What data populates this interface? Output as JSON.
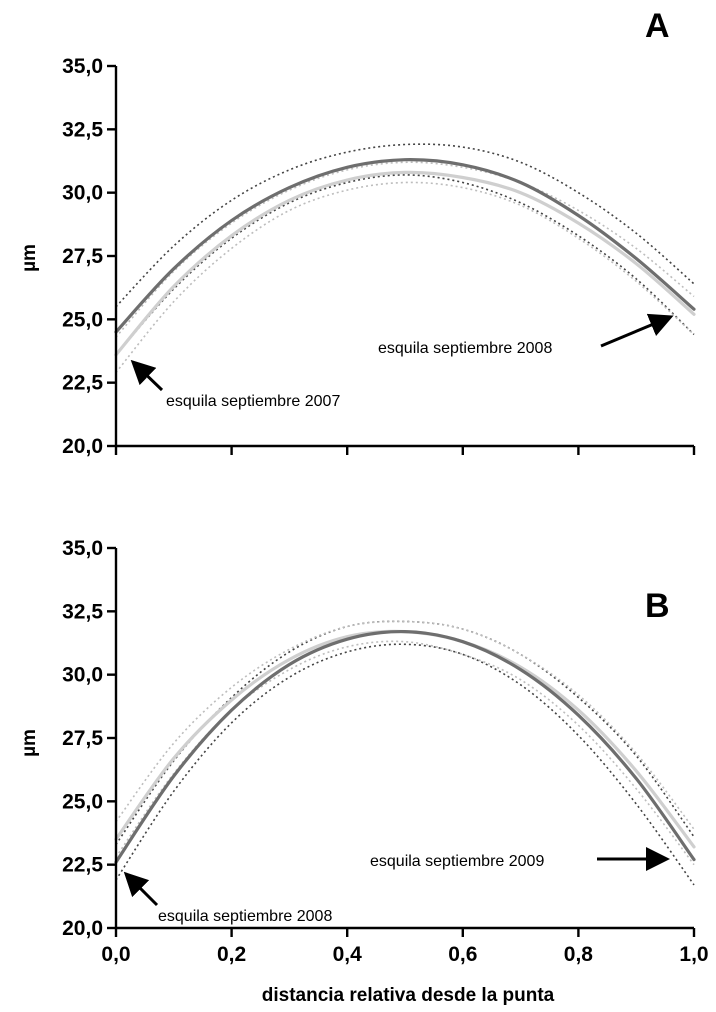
{
  "colors": {
    "series_dark": "#6e6e6e",
    "series_light": "#cfcfcf",
    "ci_dark": "#444444",
    "ci_light": "#bdbdbd",
    "axis": "#000000",
    "arrow": "#000000"
  },
  "chart_data": [
    {
      "panel": "A",
      "type": "line",
      "xlabel": "",
      "ylabel": "µm",
      "xlim": [
        0,
        1
      ],
      "ylim": [
        20,
        35
      ],
      "xticks": [
        "",
        "",
        "",
        "",
        "",
        ""
      ],
      "xtick_values": [
        0,
        0.2,
        0.4,
        0.6,
        0.8,
        1.0
      ],
      "yticks": [
        "20,0",
        "22,5",
        "25,0",
        "27,5",
        "30,0",
        "32,5",
        "35,0"
      ],
      "ytick_values": [
        20,
        22.5,
        25,
        27.5,
        30,
        32.5,
        35
      ],
      "grid": false,
      "series": [
        {
          "style": "dark",
          "x": [
            0,
            0.1,
            0.2,
            0.3,
            0.4,
            0.5,
            0.6,
            0.7,
            0.8,
            0.9,
            1.0
          ],
          "values": [
            24.5,
            27.0,
            28.9,
            30.2,
            31.0,
            31.3,
            31.1,
            30.4,
            29.1,
            27.4,
            25.4
          ],
          "ci_lower": [
            23.6,
            26.2,
            28.2,
            29.6,
            30.4,
            30.7,
            30.4,
            29.6,
            28.3,
            26.6,
            24.4
          ],
          "ci_upper": [
            25.5,
            27.9,
            29.7,
            30.9,
            31.6,
            31.9,
            31.8,
            31.2,
            30.0,
            28.4,
            26.4
          ]
        },
        {
          "style": "light",
          "x": [
            0,
            0.1,
            0.2,
            0.3,
            0.4,
            0.5,
            0.6,
            0.7,
            0.8,
            0.9,
            1.0
          ],
          "values": [
            23.6,
            26.3,
            28.3,
            29.7,
            30.5,
            30.8,
            30.6,
            30.0,
            28.8,
            27.2,
            25.2
          ],
          "ci_lower": [
            22.9,
            25.7,
            27.8,
            29.3,
            30.1,
            30.4,
            30.2,
            29.5,
            28.2,
            26.5,
            24.4
          ],
          "ci_upper": [
            24.3,
            26.9,
            28.8,
            30.1,
            30.9,
            31.2,
            31.0,
            30.4,
            29.3,
            27.8,
            25.9
          ]
        }
      ],
      "annotations": [
        {
          "text": "esquila septiembre 2007",
          "points_to": [
            0.02,
            22.7
          ]
        },
        {
          "text": "esquila septiembre 2008",
          "points_to": [
            0.98,
            25.1
          ]
        }
      ],
      "panel_label": "A"
    },
    {
      "panel": "B",
      "type": "line",
      "xlabel": "distancia relativa desde la punta",
      "ylabel": "µm",
      "xlim": [
        0,
        1
      ],
      "ylim": [
        20,
        35
      ],
      "xticks": [
        "0,0",
        "0,2",
        "0,4",
        "0,6",
        "0,8",
        "1,0"
      ],
      "xtick_values": [
        0,
        0.2,
        0.4,
        0.6,
        0.8,
        1.0
      ],
      "yticks": [
        "20,0",
        "22,5",
        "25,0",
        "27,5",
        "30,0",
        "32,5",
        "35,0"
      ],
      "ytick_values": [
        20,
        22.5,
        25,
        27.5,
        30,
        32.5,
        35
      ],
      "grid": false,
      "series": [
        {
          "style": "dark",
          "x": [
            0,
            0.1,
            0.2,
            0.3,
            0.4,
            0.5,
            0.6,
            0.7,
            0.8,
            0.9,
            1.0
          ],
          "values": [
            22.6,
            26.0,
            28.6,
            30.4,
            31.4,
            31.7,
            31.3,
            30.2,
            28.4,
            25.9,
            22.7
          ],
          "ci_lower": [
            21.9,
            25.4,
            28.1,
            29.9,
            30.9,
            31.2,
            30.8,
            29.6,
            27.6,
            24.9,
            21.7
          ],
          "ci_upper": [
            23.3,
            26.6,
            29.1,
            30.9,
            31.9,
            32.1,
            31.8,
            30.8,
            29.1,
            26.8,
            23.6
          ]
        },
        {
          "style": "light",
          "x": [
            0,
            0.1,
            0.2,
            0.3,
            0.4,
            0.5,
            0.6,
            0.7,
            0.8,
            0.9,
            1.0
          ],
          "values": [
            23.5,
            26.7,
            29.0,
            30.6,
            31.5,
            31.7,
            31.3,
            30.3,
            28.6,
            26.2,
            23.2
          ],
          "ci_lower": [
            22.8,
            26.1,
            28.6,
            30.2,
            31.1,
            31.3,
            30.8,
            29.8,
            28.0,
            25.5,
            22.5
          ],
          "ci_upper": [
            24.2,
            27.3,
            29.5,
            31.0,
            31.9,
            32.1,
            31.8,
            30.8,
            29.2,
            26.9,
            23.9
          ]
        }
      ],
      "annotations": [
        {
          "text": "esquila septiembre 2008",
          "points_to": [
            0.02,
            21.7
          ]
        },
        {
          "text": "esquila septiembre 2009",
          "points_to": [
            0.95,
            22.9
          ]
        }
      ],
      "panel_label": "B"
    }
  ]
}
